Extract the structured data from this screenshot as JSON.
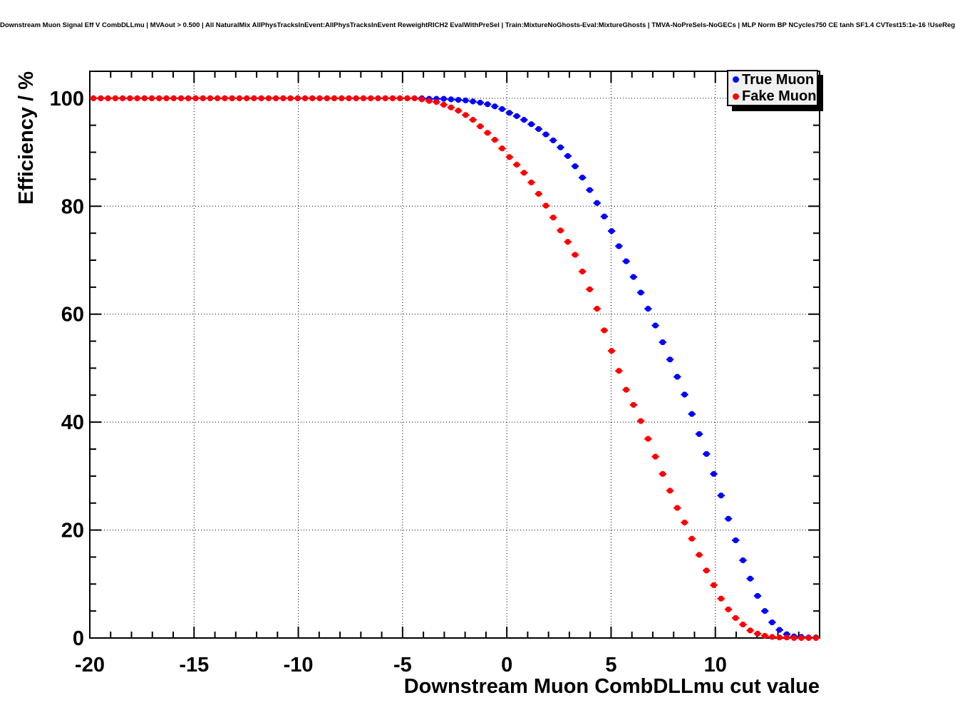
{
  "page_title": "Downstream Muon Signal Eff V CombDLLmu | MVAout > 0.500 | All NaturalMix AllPhysTracksInEvent:AllPhysTracksInEvent ReweightRICH2 EvalWithPreSel | Train:MixtureNoGhosts-Eval:MixtureGhosts | TMVA-NoPreSels-NoGECs | MLP Norm BP NCycles750 CE tanh SF1.4 CVTest15:1e-16 !UseReg",
  "legend": {
    "bg_color": "#f0f0f0",
    "entries": [
      {
        "label": "True Muon",
        "color": "#0000ff"
      },
      {
        "label": "Fake Muon",
        "color": "#ff0000"
      }
    ]
  },
  "chart_data": {
    "type": "scatter",
    "title": "Downstream Muon Signal Eff V CombDLLmu | MVAout > 0.500 | All NaturalMix AllPhysTracksInEvent:AllPhysTracksInEvent ReweightRICH2 EvalWithPreSel | Train:MixtureNoGhosts-Eval:MixtureGhosts | TMVA-NoPreSels-NoGECs | MLP Norm BP NCycles750 CE tanh SF1.4 CVTest15:1e-16 !UseReg",
    "xlabel": "Downstream Muon CombDLLmu cut value",
    "ylabel": "Efficiency / %",
    "xlim": [
      -20,
      15
    ],
    "ylim": [
      0,
      105
    ],
    "x_ticks": [
      -20,
      -15,
      -10,
      -5,
      0,
      5,
      10
    ],
    "y_ticks": [
      0,
      20,
      40,
      60,
      80,
      100
    ],
    "x_minor_step": 1,
    "y_minor_step": 5,
    "grid": "dotted",
    "legend_position": "top-right",
    "x_start": -19.825,
    "x_step": 0.35,
    "n_points": 100,
    "series": [
      {
        "name": "True Muon",
        "color": "#0000ff",
        "marker": "filled-circle-with-x-error-bar",
        "values": [
          100,
          100,
          100,
          100,
          100,
          100,
          100,
          100,
          100,
          100,
          100,
          100,
          100,
          100,
          100,
          100,
          100,
          100,
          100,
          100,
          100,
          100,
          100,
          100,
          100,
          100,
          100,
          100,
          100,
          100,
          100,
          100,
          100,
          100,
          100,
          100,
          100,
          100,
          100,
          100,
          100,
          100,
          100,
          100,
          100,
          100,
          99.9,
          99.9,
          99.9,
          99.8,
          99.7,
          99.6,
          99.4,
          99.2,
          98.9,
          98.5,
          98.0,
          97.3,
          96.7,
          96.0,
          95.2,
          94.3,
          93.3,
          92.2,
          90.9,
          89.3,
          87.4,
          85.3,
          83.0,
          80.6,
          78.1,
          75.4,
          72.6,
          69.8,
          66.9,
          64.0,
          61.0,
          57.9,
          54.8,
          51.6,
          48.4,
          45.1,
          41.5,
          37.8,
          34.1,
          30.4,
          26.4,
          22.1,
          18.1,
          14.4,
          11.0,
          7.8,
          5.0,
          2.9,
          1.5,
          0.7,
          0.3,
          0.2,
          0.1,
          0.1
        ]
      },
      {
        "name": "Fake Muon",
        "color": "#ff0000",
        "marker": "filled-circle-with-x-error-bar",
        "values": [
          100,
          100,
          100,
          100,
          100,
          100,
          100,
          100,
          100,
          100,
          100,
          100,
          100,
          100,
          100,
          100,
          100,
          100,
          100,
          100,
          100,
          100,
          100,
          100,
          100,
          100,
          100,
          100,
          100,
          100,
          100,
          100,
          100,
          100,
          100,
          100,
          100,
          100,
          100,
          100,
          100,
          100,
          100,
          100,
          100,
          99.8,
          99.5,
          99.3,
          98.8,
          98.3,
          97.7,
          96.9,
          96.0,
          94.8,
          93.6,
          92.3,
          90.7,
          89.1,
          87.7,
          86.2,
          84.4,
          82.3,
          80.1,
          77.9,
          75.5,
          73.4,
          71.0,
          67.9,
          64.6,
          61.0,
          57.0,
          53.2,
          49.5,
          46.0,
          43.2,
          40.2,
          36.9,
          33.6,
          30.4,
          27.3,
          24.1,
          21.4,
          18.4,
          15.4,
          12.5,
          9.8,
          7.3,
          5.3,
          3.7,
          2.5,
          1.4,
          0.8,
          0.4,
          0.2,
          0.1,
          0.1,
          0.0,
          0.0,
          0.0,
          0.0
        ]
      }
    ]
  }
}
